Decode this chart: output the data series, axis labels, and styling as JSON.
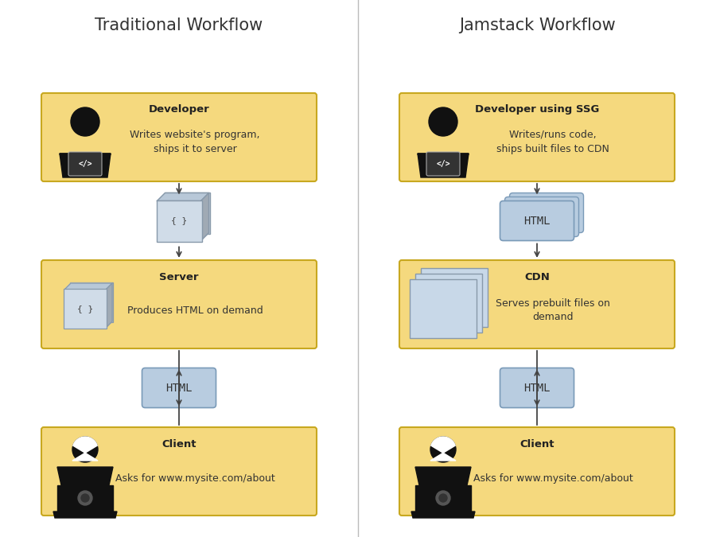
{
  "bg_color": "#ffffff",
  "box_fill": "#f5d97e",
  "box_edge": "#c8a820",
  "html_fill": "#b8cce0",
  "html_edge": "#7a9ab8",
  "icon_fill": "#b8cce0",
  "icon_edge": "#7a9ab8",
  "title_left": "Traditional Workflow",
  "title_right": "Jamstack Workflow",
  "title_fontsize": 15,
  "left_boxes": [
    {
      "label": "Developer",
      "body": "Writes website's program,\nships it to server"
    },
    {
      "label": "Server",
      "body": "Produces HTML on demand"
    },
    {
      "label": "Client",
      "body": "Asks for www.mysite.com/about"
    }
  ],
  "right_boxes": [
    {
      "label": "Developer using SSG",
      "body": "Writes/runs code,\nships built files to CDN"
    },
    {
      "label": "CDN",
      "body": "Serves prebuilt files on\ndemand"
    },
    {
      "label": "Client",
      "body": "Asks for www.mysite.com/about"
    }
  ],
  "person_color": "#111111",
  "code_box_color": "#222222",
  "code_box_edge": "#999999"
}
